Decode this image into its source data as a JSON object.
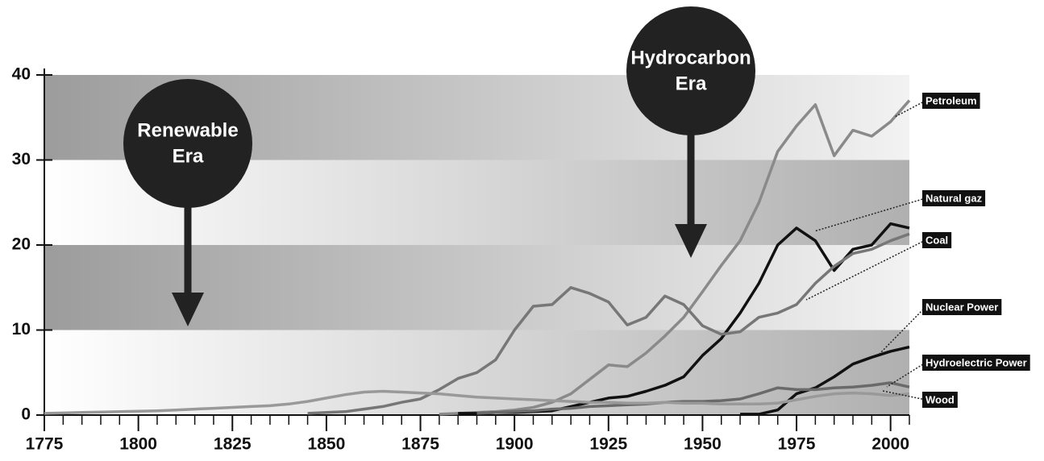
{
  "chart_data": {
    "type": "line",
    "x": [
      1775,
      1780,
      1785,
      1790,
      1795,
      1800,
      1805,
      1810,
      1815,
      1820,
      1825,
      1830,
      1835,
      1840,
      1845,
      1850,
      1855,
      1860,
      1865,
      1870,
      1875,
      1880,
      1885,
      1890,
      1895,
      1900,
      1905,
      1910,
      1915,
      1920,
      1925,
      1930,
      1935,
      1940,
      1945,
      1950,
      1955,
      1960,
      1965,
      1970,
      1975,
      1980,
      1985,
      1990,
      1995,
      2000,
      2005
    ],
    "series": [
      {
        "name": "Petroleum",
        "color": "#8a8a8a",
        "values": [
          null,
          null,
          null,
          null,
          null,
          null,
          null,
          null,
          null,
          null,
          null,
          null,
          null,
          null,
          null,
          null,
          null,
          null,
          null,
          null,
          null,
          0.1,
          0.2,
          0.3,
          0.4,
          0.6,
          0.9,
          1.5,
          2.5,
          4.2,
          5.9,
          5.7,
          7.3,
          9.3,
          11.5,
          14.5,
          17.6,
          20.5,
          25.0,
          31.0,
          34.0,
          36.5,
          30.5,
          33.5,
          32.8,
          34.5,
          37.0
        ]
      },
      {
        "name": "Natural gaz",
        "color": "#111111",
        "values": [
          null,
          null,
          null,
          null,
          null,
          null,
          null,
          null,
          null,
          null,
          null,
          null,
          null,
          null,
          null,
          null,
          null,
          null,
          null,
          null,
          null,
          null,
          0.2,
          0.2,
          0.3,
          0.3,
          0.4,
          0.5,
          1.0,
          1.5,
          2.0,
          2.2,
          2.8,
          3.5,
          4.5,
          7.0,
          9.0,
          12.0,
          15.5,
          20.0,
          22.0,
          20.5,
          17.0,
          19.5,
          20.0,
          22.5,
          22.0
        ]
      },
      {
        "name": "Coal",
        "color": "#777777",
        "values": [
          null,
          null,
          null,
          null,
          null,
          null,
          null,
          null,
          null,
          null,
          null,
          null,
          null,
          null,
          0.2,
          0.3,
          0.4,
          0.7,
          1.0,
          1.5,
          1.9,
          3.0,
          4.3,
          5.0,
          6.5,
          10.0,
          12.8,
          13.0,
          15.0,
          14.3,
          13.3,
          10.6,
          11.5,
          14.0,
          13.0,
          10.5,
          9.5,
          9.8,
          11.5,
          12.0,
          13.0,
          15.5,
          17.5,
          19.0,
          19.5,
          20.5,
          21.3
        ]
      },
      {
        "name": "Nuclear Power",
        "color": "#111111",
        "values": [
          null,
          null,
          null,
          null,
          null,
          null,
          null,
          null,
          null,
          null,
          null,
          null,
          null,
          null,
          null,
          null,
          null,
          null,
          null,
          null,
          null,
          null,
          null,
          null,
          null,
          null,
          null,
          null,
          null,
          null,
          null,
          null,
          null,
          null,
          null,
          null,
          null,
          0.1,
          0.1,
          0.6,
          2.5,
          3.2,
          4.5,
          6.0,
          6.8,
          7.5,
          8.0
        ]
      },
      {
        "name": "Hydroelectric Power",
        "color": "#6a6a6a",
        "values": [
          null,
          null,
          null,
          null,
          null,
          null,
          null,
          null,
          null,
          null,
          null,
          null,
          null,
          null,
          null,
          null,
          null,
          null,
          null,
          null,
          null,
          null,
          null,
          0.2,
          0.3,
          0.4,
          0.5,
          0.7,
          0.8,
          1.0,
          1.1,
          1.2,
          1.3,
          1.5,
          1.6,
          1.6,
          1.7,
          1.9,
          2.5,
          3.2,
          3.0,
          3.0,
          3.2,
          3.3,
          3.5,
          3.8,
          3.3
        ]
      },
      {
        "name": "Wood",
        "color": "#999999",
        "values": [
          0.2,
          0.25,
          0.3,
          0.35,
          0.4,
          0.45,
          0.5,
          0.6,
          0.7,
          0.8,
          0.9,
          1.0,
          1.1,
          1.3,
          1.6,
          2.0,
          2.4,
          2.7,
          2.8,
          2.7,
          2.6,
          2.5,
          2.3,
          2.1,
          2.0,
          1.9,
          1.8,
          1.7,
          1.6,
          1.5,
          1.5,
          1.4,
          1.4,
          1.5,
          1.4,
          1.4,
          1.3,
          1.3,
          1.3,
          1.4,
          1.8,
          2.2,
          2.5,
          2.6,
          2.5,
          2.3,
          2.5
        ]
      }
    ],
    "annotations": [
      {
        "lines": [
          "Renewable",
          "Era"
        ]
      },
      {
        "lines": [
          "Hydrocarbon",
          "Era"
        ]
      }
    ],
    "xlim": [
      1775,
      2005
    ],
    "xticks": [
      1775,
      1800,
      1825,
      1850,
      1875,
      1900,
      1925,
      1950,
      1975,
      2000
    ],
    "xminorticks": [
      1780,
      1785,
      1790,
      1795,
      1805,
      1810,
      1815,
      1820,
      1830,
      1835,
      1840,
      1845,
      1855,
      1860,
      1865,
      1870,
      1880,
      1885,
      1890,
      1895,
      1905,
      1910,
      1915,
      1920,
      1930,
      1935,
      1940,
      1945,
      1955,
      1960,
      1965,
      1970,
      1980,
      1985,
      1990,
      1995,
      2005
    ],
    "ylim": [
      0,
      40
    ],
    "yticks": [
      0,
      10,
      20,
      30,
      40
    ]
  }
}
